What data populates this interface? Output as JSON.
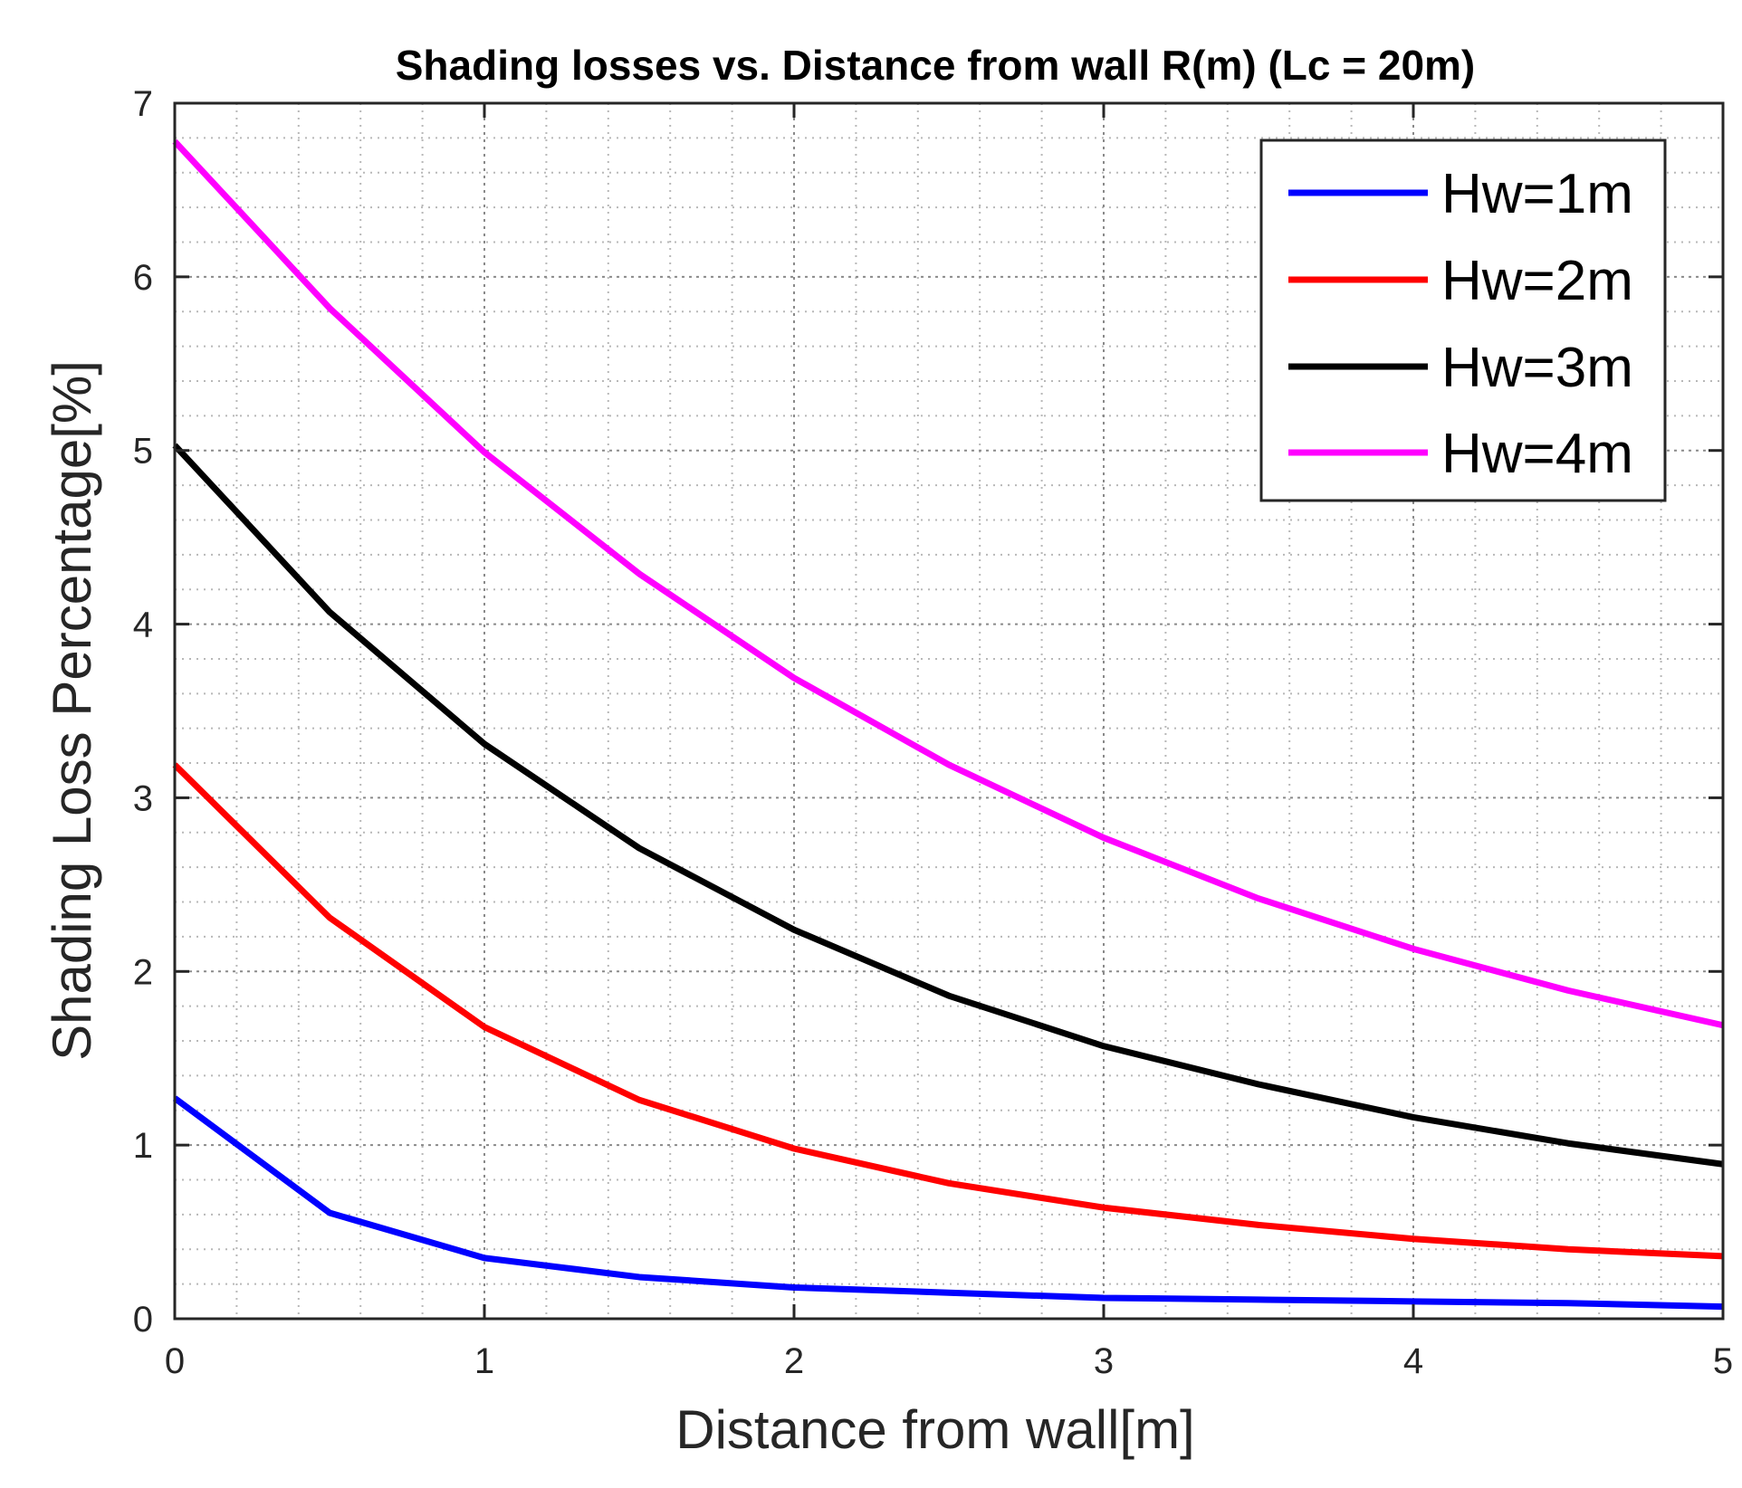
{
  "chart_data": {
    "type": "line",
    "title": "Shading losses vs. Distance from wall R(m) (Lc = 20m)",
    "xlabel": "Distance from wall[m]",
    "ylabel": "Shading Loss Percentage[%]",
    "xlim": [
      0,
      5
    ],
    "ylim": [
      0,
      7
    ],
    "xticks": [
      0,
      1,
      2,
      3,
      4,
      5
    ],
    "yticks": [
      0,
      1,
      2,
      3,
      4,
      5,
      6,
      7
    ],
    "xtick_labels": [
      "0",
      "1",
      "2",
      "3",
      "4",
      "5"
    ],
    "ytick_labels": [
      "0",
      "1",
      "2",
      "3",
      "4",
      "5",
      "6",
      "7"
    ],
    "grid": "major and minor (dotted)",
    "legend_position": "top-right",
    "x": [
      0,
      0.5,
      1,
      1.5,
      2,
      2.5,
      3,
      3.5,
      4,
      4.5,
      5
    ],
    "series": [
      {
        "name": "Hw=1m",
        "color": "#0000ff",
        "values": [
          1.27,
          0.61,
          0.35,
          0.24,
          0.18,
          0.15,
          0.12,
          0.11,
          0.1,
          0.09,
          0.07
        ]
      },
      {
        "name": "Hw=2m",
        "color": "#ff0000",
        "values": [
          3.19,
          2.31,
          1.68,
          1.26,
          0.98,
          0.78,
          0.64,
          0.54,
          0.46,
          0.4,
          0.36
        ]
      },
      {
        "name": "Hw=3m",
        "color": "#000000",
        "values": [
          5.03,
          4.07,
          3.31,
          2.71,
          2.24,
          1.86,
          1.57,
          1.35,
          1.16,
          1.01,
          0.89
        ]
      },
      {
        "name": "Hw=4m",
        "color": "#ff00ff",
        "values": [
          6.78,
          5.82,
          4.99,
          4.29,
          3.69,
          3.19,
          2.77,
          2.42,
          2.13,
          1.89,
          1.69
        ]
      }
    ]
  }
}
